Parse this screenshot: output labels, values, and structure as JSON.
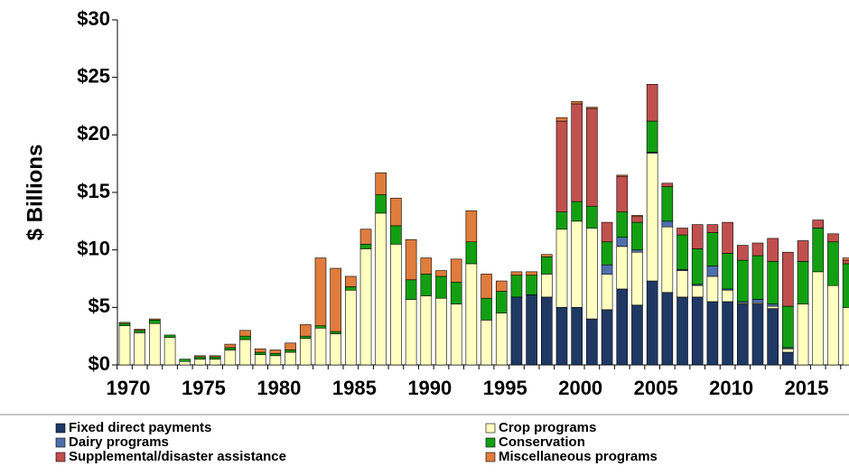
{
  "chart_data": {
    "type": "stacked_bar",
    "y_axis_label": "$ Billions",
    "categories": [
      "1970",
      null,
      null,
      null,
      null,
      "1975",
      null,
      null,
      null,
      null,
      "1980",
      null,
      null,
      null,
      null,
      "1985",
      null,
      null,
      null,
      null,
      "1990",
      null,
      null,
      null,
      null,
      "1995",
      null,
      null,
      null,
      null,
      "2000",
      null,
      null,
      null,
      null,
      "2005",
      null,
      null,
      null,
      null,
      "2010",
      null,
      null,
      null,
      null,
      "2015",
      null,
      null,
      null
    ],
    "series": [
      {
        "name": "Fixed direct payments",
        "color": "#1f3864",
        "values": [
          0,
          0,
          0,
          0,
          0,
          0,
          0,
          0,
          0,
          0,
          0,
          0,
          0,
          0,
          0,
          0,
          0,
          0,
          0,
          0,
          0,
          0,
          0,
          0,
          0,
          0,
          5.9,
          6.1,
          5.9,
          5.0,
          5.0,
          4.0,
          4.8,
          6.6,
          5.2,
          7.3,
          6.3,
          5.9,
          5.9,
          5.5,
          5.5,
          5.3,
          5.3,
          4.9,
          1.1,
          0,
          0,
          0,
          0
        ]
      },
      {
        "name": "Crop programs",
        "color": "#ffffc0",
        "values": [
          3.4,
          2.8,
          3.6,
          2.4,
          0.3,
          0.5,
          0.5,
          1.3,
          2.2,
          0.9,
          0.8,
          1.1,
          2.3,
          3.2,
          2.7,
          6.5,
          10.1,
          13.2,
          10.5,
          5.7,
          6.0,
          5.8,
          5.3,
          8.8,
          3.9,
          4.5,
          0,
          0,
          2.0,
          6.8,
          7.5,
          7.9,
          3.1,
          3.7,
          4.6,
          11.1,
          5.7,
          2.3,
          1.0,
          2.2,
          1.0,
          0.1,
          0.1,
          0.2,
          0.3,
          5.3,
          8.1,
          6.9,
          5.0
        ]
      },
      {
        "name": "Dairy programs",
        "color": "#4f6fad",
        "values": [
          0,
          0,
          0,
          0,
          0,
          0,
          0,
          0,
          0,
          0,
          0,
          0,
          0,
          0,
          0,
          0,
          0,
          0,
          0,
          0,
          0,
          0,
          0,
          0,
          0,
          0,
          0,
          0,
          0,
          0,
          0,
          0,
          0.8,
          0.8,
          0.2,
          0.1,
          0.5,
          0.1,
          0.1,
          0.9,
          0.1,
          0.1,
          0.3,
          0.2,
          0.1,
          0,
          0,
          0,
          0
        ]
      },
      {
        "name": "Conservation",
        "color": "#12a012",
        "values": [
          0.2,
          0.2,
          0.3,
          0.2,
          0.2,
          0.2,
          0.2,
          0.2,
          0.3,
          0.2,
          0.2,
          0.2,
          0.2,
          0.2,
          0.2,
          0.3,
          0.4,
          1.6,
          1.6,
          1.7,
          1.9,
          1.9,
          1.9,
          1.9,
          1.9,
          1.9,
          1.9,
          1.7,
          1.5,
          1.5,
          1.7,
          1.9,
          2.0,
          2.2,
          2.4,
          2.7,
          3.0,
          3.0,
          3.1,
          2.9,
          3.1,
          3.6,
          3.8,
          3.7,
          3.6,
          3.7,
          3.8,
          3.8,
          3.8
        ]
      },
      {
        "name": "Supplemental/disaster assistance",
        "color": "#c0504d",
        "values": [
          0,
          0,
          0,
          0,
          0,
          0,
          0,
          0,
          0,
          0,
          0,
          0,
          0,
          0,
          0,
          0,
          0,
          0,
          0,
          0,
          0,
          0,
          0,
          0,
          0,
          0,
          0,
          0,
          0,
          7.9,
          8.5,
          8.5,
          1.7,
          3.1,
          0.5,
          3.2,
          0.3,
          0.6,
          2.1,
          0.7,
          2.7,
          1.3,
          1.1,
          2.0,
          4.7,
          1.8,
          0.7,
          0.7,
          0.3
        ]
      },
      {
        "name": "Miscellaneous programs",
        "color": "#e07c3c",
        "values": [
          0.1,
          0.1,
          0.1,
          0,
          0,
          0.1,
          0.1,
          0.3,
          0.5,
          0.3,
          0.3,
          0.6,
          1.0,
          5.9,
          5.5,
          0.9,
          1.3,
          1.9,
          2.4,
          3.5,
          1.4,
          0.5,
          2.0,
          2.7,
          2.1,
          0.9,
          0.3,
          0.3,
          0.2,
          0.3,
          0.2,
          0.1,
          0,
          0.1,
          0.1,
          0,
          0,
          0,
          0,
          0,
          0,
          0,
          0,
          0,
          0,
          0,
          0,
          0,
          0.2
        ]
      }
    ],
    "ylim": [
      0,
      30
    ],
    "yticks": [
      {
        "value": 0,
        "label": "$0"
      },
      {
        "value": 5,
        "label": "$5"
      },
      {
        "value": 10,
        "label": "$10"
      },
      {
        "value": 15,
        "label": "$15"
      },
      {
        "value": 20,
        "label": "$20"
      },
      {
        "value": 25,
        "label": "$25"
      },
      {
        "value": 30,
        "label": "$30"
      }
    ],
    "legend": "bottom"
  }
}
